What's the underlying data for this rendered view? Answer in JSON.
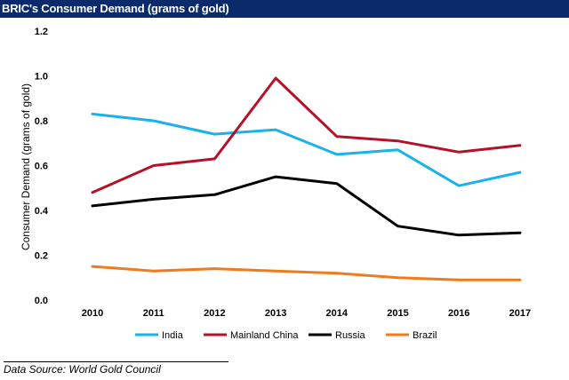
{
  "header": {
    "title": "BRIC's Consumer Demand (grams of gold)"
  },
  "footer": {
    "source": "Data Source: World Gold Council"
  },
  "chart_data": {
    "type": "line",
    "title": "BRIC's Consumer Demand (grams of gold)",
    "xlabel": "",
    "ylabel": "Consumer Demand (grams of gold)",
    "ylim": [
      0,
      1.2
    ],
    "yticks": [
      "0.0",
      "0.2",
      "0.4",
      "0.6",
      "0.8",
      "1.0",
      "1.2"
    ],
    "categories": [
      "2010",
      "2011",
      "2012",
      "2013",
      "2014",
      "2015",
      "2016",
      "2017"
    ],
    "grid": false,
    "legend_position": "bottom",
    "series": [
      {
        "name": "India",
        "color": "#1ab2e8",
        "values": [
          0.83,
          0.8,
          0.74,
          0.76,
          0.65,
          0.67,
          0.51,
          0.57
        ]
      },
      {
        "name": "Mainland China",
        "color": "#b5122a",
        "values": [
          0.48,
          0.6,
          0.63,
          0.99,
          0.73,
          0.71,
          0.66,
          0.69
        ]
      },
      {
        "name": "Russia",
        "color": "#000000",
        "values": [
          0.42,
          0.45,
          0.47,
          0.55,
          0.52,
          0.33,
          0.29,
          0.3
        ]
      },
      {
        "name": "Brazil",
        "color": "#f07a1e",
        "values": [
          0.15,
          0.13,
          0.14,
          0.13,
          0.12,
          0.1,
          0.09,
          0.09
        ]
      }
    ]
  }
}
